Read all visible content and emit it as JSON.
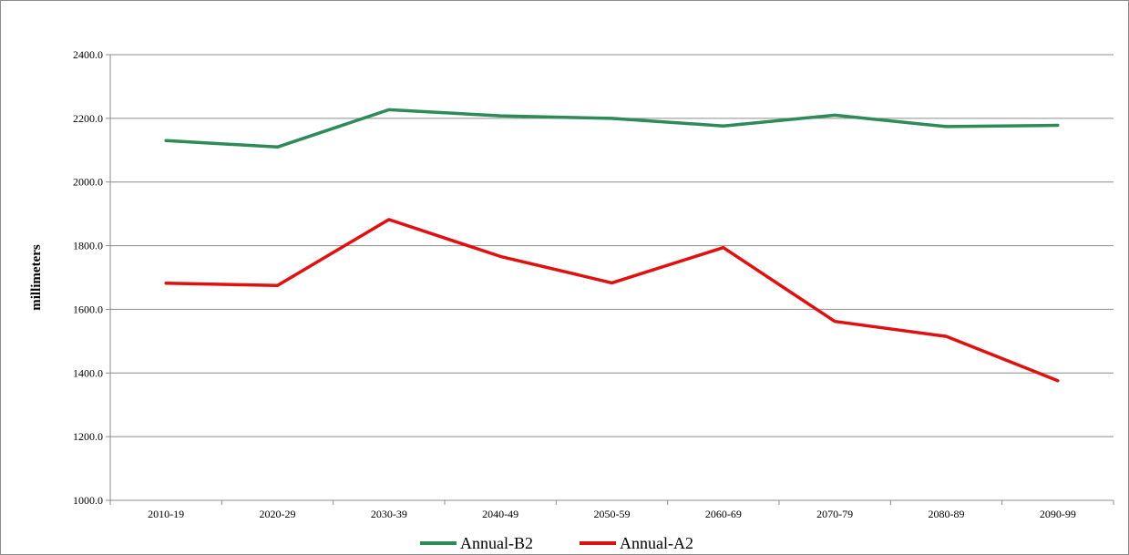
{
  "chart_data": {
    "type": "line",
    "categories": [
      "2010-19",
      "2020-29",
      "2030-39",
      "2040-49",
      "2050-59",
      "2060-69",
      "2070-79",
      "2080-89",
      "2090-99"
    ],
    "series": [
      {
        "name": "Annual-B2",
        "color": "#2e8b57",
        "values": [
          2130,
          2110,
          2227,
          2208,
          2200,
          2176,
          2210,
          2174,
          2178
        ]
      },
      {
        "name": "Annual-A2",
        "color": "#e01010",
        "values": [
          1682,
          1675,
          1882,
          1766,
          1683,
          1794,
          1562,
          1515,
          1376
        ]
      }
    ],
    "ylabel": "millimeters",
    "ylim": [
      1000,
      2400
    ],
    "yticks": [
      "1000.0",
      "1200.0",
      "1400.0",
      "1600.0",
      "1800.0",
      "2000.0",
      "2200.0",
      "2400.0"
    ],
    "grid": "horizontal",
    "legend": "bottom-center"
  }
}
